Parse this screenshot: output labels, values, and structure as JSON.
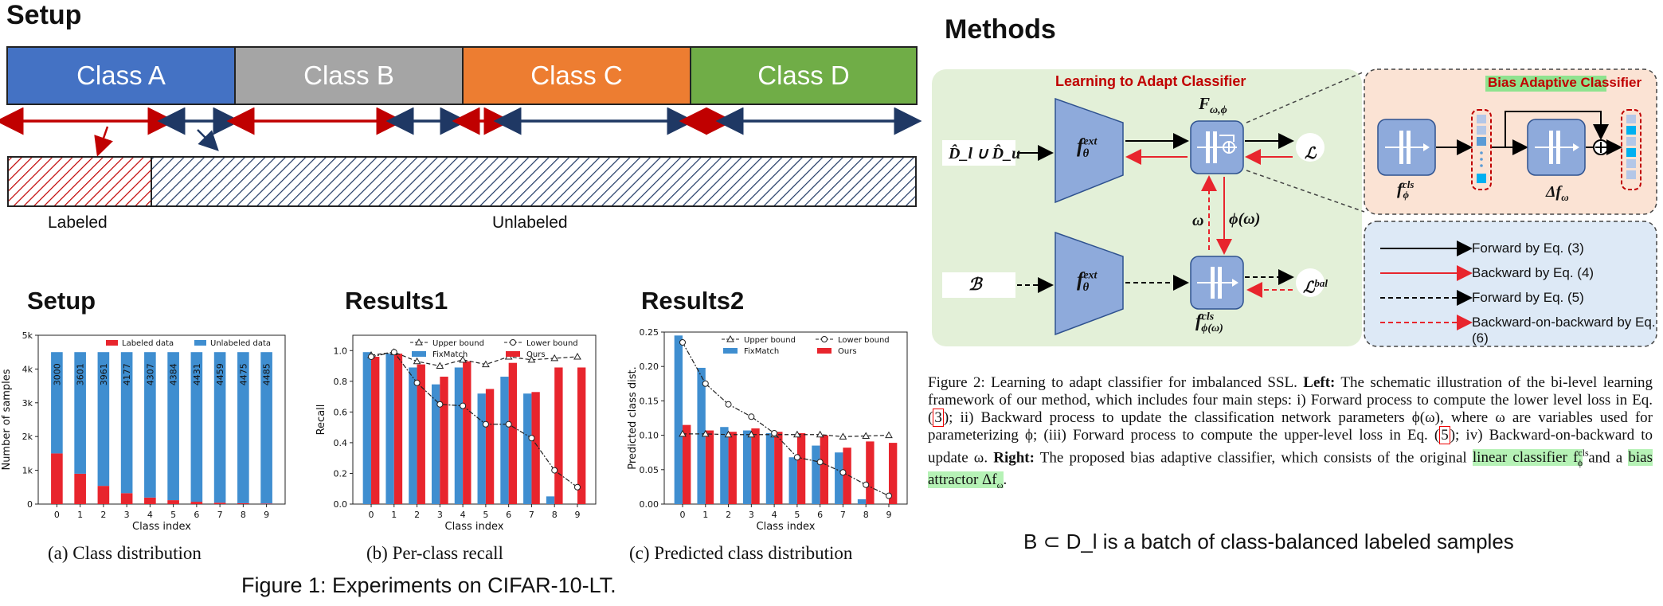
{
  "setup_title": "Setup",
  "classes": [
    {
      "label": "Class A",
      "color": "#4472c4"
    },
    {
      "label": "Class B",
      "color": "#a5a5a5"
    },
    {
      "label": "Class C",
      "color": "#ed7d31"
    },
    {
      "label": "Class D",
      "color": "#70ad47"
    }
  ],
  "labeled_label": "Labeled",
  "unlabeled_label": "Unlabeled",
  "subfig_titles": {
    "setup": "Setup",
    "results1": "Results1",
    "results2": "Results2"
  },
  "chart_data": [
    {
      "type": "bar",
      "id": "a",
      "caption": "(a)  Class distribution",
      "xlabel": "Class index",
      "ylabel": "Number of samples",
      "categories": [
        "0",
        "1",
        "2",
        "3",
        "4",
        "5",
        "6",
        "7",
        "8",
        "9"
      ],
      "ylim": [
        0,
        5000
      ],
      "yticks": [
        "0",
        "1k",
        "2k",
        "3k",
        "4k",
        "5k"
      ],
      "series": [
        {
          "name": "Labeled data",
          "color": "#e8252d",
          "values": [
            1500,
            899,
            539,
            323,
            193,
            116,
            69,
            41,
            25,
            15
          ]
        },
        {
          "name": "Unlabeled data",
          "color": "#3f8ed0",
          "values": [
            3000,
            3601,
            3961,
            4177,
            4307,
            4384,
            4431,
            4459,
            4475,
            4485
          ]
        }
      ],
      "bar_labels": [
        "3000",
        "3601",
        "3961",
        "4177",
        "4307",
        "4384",
        "4431",
        "4459",
        "4475",
        "4485"
      ],
      "legend": "top"
    },
    {
      "type": "bar",
      "id": "b",
      "caption": "(b)  Per-class recall",
      "xlabel": "Class index",
      "ylabel": "Recall",
      "categories": [
        "0",
        "1",
        "2",
        "3",
        "4",
        "5",
        "6",
        "7",
        "8",
        "9"
      ],
      "ylim": [
        0,
        1.1
      ],
      "yticks": [
        "0.0",
        "0.2",
        "0.4",
        "0.6",
        "0.8",
        "1.0"
      ],
      "series": [
        {
          "name": "FixMatch",
          "color": "#3f8ed0",
          "values": [
            0.99,
            0.98,
            0.89,
            0.78,
            0.89,
            0.72,
            0.83,
            0.72,
            0.05,
            0.0
          ]
        },
        {
          "name": "Ours",
          "color": "#e8252d",
          "values": [
            0.96,
            0.98,
            0.91,
            0.83,
            0.93,
            0.75,
            0.92,
            0.73,
            0.89,
            0.89
          ]
        }
      ],
      "lines": [
        {
          "name": "Upper bound",
          "marker": "triangle",
          "values": [
            0.97,
            0.99,
            0.93,
            0.9,
            0.94,
            0.91,
            0.96,
            0.94,
            0.95,
            0.96
          ]
        },
        {
          "name": "Lower bound",
          "marker": "circle",
          "values": [
            0.96,
            0.99,
            0.79,
            0.65,
            0.64,
            0.52,
            0.52,
            0.43,
            0.22,
            0.11
          ]
        }
      ],
      "legend": "top"
    },
    {
      "type": "bar",
      "id": "c",
      "caption": "(c)  Predicted class distribution",
      "xlabel": "Class index",
      "ylabel": "Predicted class dist.",
      "categories": [
        "0",
        "1",
        "2",
        "3",
        "4",
        "5",
        "6",
        "7",
        "8",
        "9"
      ],
      "ylim": [
        0,
        0.25
      ],
      "yticks": [
        "0.00",
        "0.05",
        "0.10",
        "0.15",
        "0.20",
        "0.25"
      ],
      "series": [
        {
          "name": "FixMatch",
          "color": "#3f8ed0",
          "values": [
            0.245,
            0.198,
            0.112,
            0.107,
            0.103,
            0.068,
            0.085,
            0.075,
            0.007,
            0.0
          ]
        },
        {
          "name": "Ours",
          "color": "#e8252d",
          "values": [
            0.115,
            0.107,
            0.105,
            0.11,
            0.105,
            0.103,
            0.1,
            0.082,
            0.091,
            0.089
          ]
        }
      ],
      "lines": [
        {
          "name": "Upper bound",
          "marker": "triangle",
          "values": [
            0.102,
            0.102,
            0.101,
            0.101,
            0.101,
            0.101,
            0.101,
            0.098,
            0.099,
            0.1
          ]
        },
        {
          "name": "Lower bound",
          "marker": "circle",
          "values": [
            0.235,
            0.175,
            0.145,
            0.127,
            0.103,
            0.068,
            0.061,
            0.046,
            0.028,
            0.012
          ]
        }
      ],
      "legend": "top"
    }
  ],
  "figure1_caption": "Figure 1: Experiments on CIFAR-10-LT.",
  "methods_title": "Methods",
  "diagram": {
    "learning_title": "Learning to Adapt Classifier",
    "bias_title": "Bias Adaptive Classifier",
    "input_top": "D̂_l ∪ D̂_u",
    "input_bottom": "ℬ",
    "f_ext": "f",
    "f_ext_sup": "ext",
    "f_ext_sub": "θ",
    "F_label": "F",
    "F_sub": "ω,ϕ",
    "loss": "ℒ",
    "loss_bal": "ℒ",
    "loss_bal_sup": "bal",
    "omega": "ω",
    "phi_omega": "ϕ(ω)",
    "fcls_bottom": "f",
    "fcls_bottom_sup": "cls",
    "fcls_bottom_sub": "ϕ(ω)",
    "fcls_right": "f",
    "fcls_right_sup": "cls",
    "fcls_right_sub": "ϕ",
    "delta_f": "Δf",
    "delta_f_sub": "ω"
  },
  "legend": [
    {
      "label": "Forward by Eq. (3)",
      "color": "#000000",
      "dashed": false
    },
    {
      "label": "Backward by Eq. (4)",
      "color": "#e8252d",
      "dashed": false
    },
    {
      "label": "Forward by Eq. (5)",
      "color": "#000000",
      "dashed": true
    },
    {
      "label": "Backward-on-backward by Eq. (6)",
      "color": "#e8252d",
      "dashed": true
    }
  ],
  "figure2": {
    "lead": "Figure 2: Learning to adapt classifier for imbalanced SSL. ",
    "left_bold": "Left:",
    "text1": " The schematic illustration of the bi-level learning framework of our method, which includes four main steps: i) Forward process to compute the lower level loss in Eq. (",
    "ref3": "3",
    "text2": "); ii) Backward process to update the classification network parameters ϕ(ω), where ω are variables used for parameterizing ϕ; (iii) Forward process to compute the upper-level loss in Eq. (",
    "ref5": "5",
    "text3": "); iv) Backward-on-backward to update ω. ",
    "right_bold": "Right:",
    "text4": " The proposed bias adaptive classifier, which consists of the original ",
    "hl1": "linear classifier f",
    "hl1_sup": "cls",
    "hl1_sub": "ϕ",
    "text5": " and a ",
    "hl2": "bias attractor Δf",
    "hl2_sub": "ω",
    "text6": "."
  },
  "note": "B ⊂ D_l is a batch of class-balanced labeled samples"
}
